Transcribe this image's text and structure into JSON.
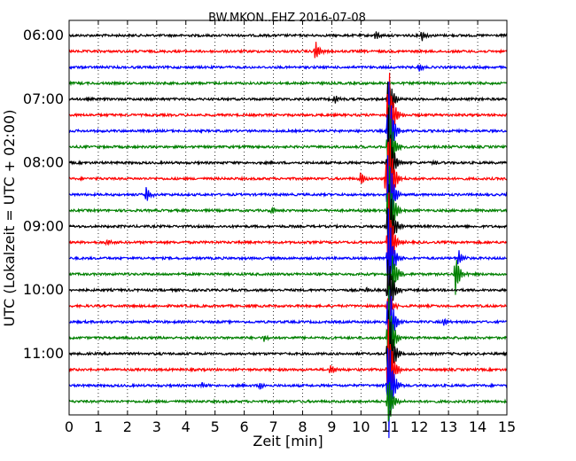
{
  "chart_data": {
    "type": "line",
    "title": "BW.MKON..EHZ 2016-07-08",
    "xlabel": "Zeit  [min]",
    "ylabel": "UTC (Lokalzeit = UTC + 02:00)",
    "xlim": [
      0,
      15
    ],
    "x_ticks": [
      "0",
      "1",
      "2",
      "3",
      "4",
      "5",
      "6",
      "7",
      "8",
      "9",
      "10",
      "11",
      "12",
      "13",
      "14",
      "15"
    ],
    "y_ticks": [
      {
        "row": 0,
        "label": "06:00"
      },
      {
        "row": 4,
        "label": "07:00"
      },
      {
        "row": 8,
        "label": "08:00"
      },
      {
        "row": 12,
        "label": "09:00"
      },
      {
        "row": 16,
        "label": "10:00"
      },
      {
        "row": 20,
        "label": "11:00"
      }
    ],
    "grid": "vertical-dotted",
    "trace_interval_minutes": 15,
    "trace_colors": [
      "#000000",
      "#ff0000",
      "#0000ff",
      "#008000"
    ],
    "traces": [
      {
        "start": "06:00",
        "events": [
          {
            "t": 10.5,
            "a": 0.6
          },
          {
            "t": 12.1,
            "a": 0.8
          }
        ]
      },
      {
        "start": "06:15",
        "events": [
          {
            "t": 8.45,
            "a": 1.4
          }
        ]
      },
      {
        "start": "06:30",
        "events": [
          {
            "t": 12.0,
            "a": 0.7
          }
        ]
      },
      {
        "start": "06:45",
        "events": []
      },
      {
        "start": "07:00",
        "events": [
          {
            "t": 9.1,
            "a": 0.6
          },
          {
            "t": 10.95,
            "a": 4.0
          }
        ]
      },
      {
        "start": "07:15",
        "events": [
          {
            "t": 10.95,
            "a": 8.0
          }
        ]
      },
      {
        "start": "07:30",
        "events": [
          {
            "t": 10.95,
            "a": 8.0
          }
        ]
      },
      {
        "start": "07:45",
        "events": [
          {
            "t": 10.95,
            "a": 8.0
          }
        ]
      },
      {
        "start": "08:00",
        "events": [
          {
            "t": 10.95,
            "a": 8.0
          },
          {
            "t": 12.5,
            "a": 0.4
          }
        ]
      },
      {
        "start": "08:15",
        "events": [
          {
            "t": 10.0,
            "a": 0.9
          },
          {
            "t": 10.85,
            "a": 2.0
          },
          {
            "t": 10.95,
            "a": 8.0
          }
        ]
      },
      {
        "start": "08:30",
        "events": [
          {
            "t": 2.65,
            "a": 1.1
          },
          {
            "t": 10.95,
            "a": 8.0
          }
        ]
      },
      {
        "start": "08:45",
        "events": [
          {
            "t": 6.95,
            "a": 0.6
          },
          {
            "t": 10.95,
            "a": 8.0
          }
        ]
      },
      {
        "start": "09:00",
        "events": [
          {
            "t": 10.95,
            "a": 8.0
          }
        ]
      },
      {
        "start": "09:15",
        "events": [
          {
            "t": 1.3,
            "a": 0.5
          },
          {
            "t": 10.95,
            "a": 8.0
          }
        ]
      },
      {
        "start": "09:30",
        "events": [
          {
            "t": 10.95,
            "a": 8.0
          },
          {
            "t": 13.35,
            "a": 1.2
          }
        ]
      },
      {
        "start": "09:45",
        "events": [
          {
            "t": 11.1,
            "a": 3.0
          },
          {
            "t": 13.25,
            "a": 3.0
          }
        ]
      },
      {
        "start": "10:00",
        "events": [
          {
            "t": 10.95,
            "a": 6.0
          },
          {
            "t": 10.2,
            "a": 0.4
          }
        ]
      },
      {
        "start": "10:15",
        "events": [
          {
            "t": 10.95,
            "a": 2.5
          }
        ]
      },
      {
        "start": "10:30",
        "events": [
          {
            "t": 10.95,
            "a": 8.0
          },
          {
            "t": 12.85,
            "a": 0.5
          }
        ]
      },
      {
        "start": "10:45",
        "events": [
          {
            "t": 6.7,
            "a": 0.5
          },
          {
            "t": 10.95,
            "a": 8.0
          }
        ]
      },
      {
        "start": "11:00",
        "events": [
          {
            "t": 10.95,
            "a": 8.0
          }
        ]
      },
      {
        "start": "11:15",
        "events": [
          {
            "t": 8.95,
            "a": 0.8
          },
          {
            "t": 10.95,
            "a": 8.0
          }
        ]
      },
      {
        "start": "11:30",
        "events": [
          {
            "t": 4.55,
            "a": 0.4
          },
          {
            "t": 6.55,
            "a": 0.5
          },
          {
            "t": 10.95,
            "a": 8.0
          }
        ]
      },
      {
        "start": "11:45",
        "events": [
          {
            "t": 10.95,
            "a": 4.0
          }
        ]
      }
    ]
  }
}
